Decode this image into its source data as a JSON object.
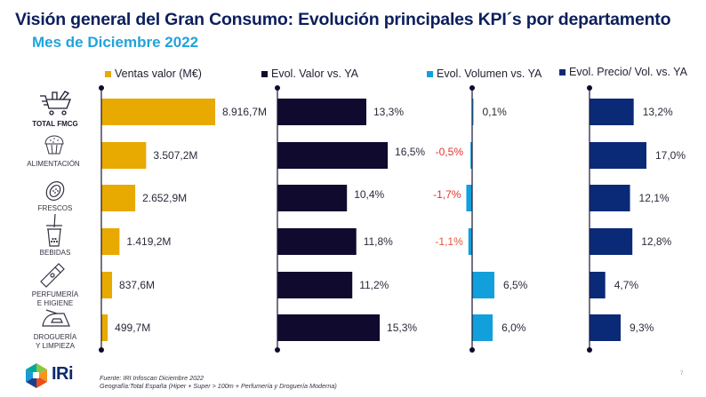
{
  "header": {
    "title": "Visión general del Gran Consumo: Evolución principales KPI´s por departamento",
    "subtitle": "Mes de Diciembre 2022"
  },
  "categories": [
    {
      "label_lines": [
        "TOTAL FMCG"
      ],
      "icon": "shopping-cart-icon",
      "bold": true
    },
    {
      "label_lines": [
        "ALIMENTACIÓN"
      ],
      "icon": "muffin-icon",
      "bold": false
    },
    {
      "label_lines": [
        "FRESCOS"
      ],
      "icon": "papaya-icon",
      "bold": false
    },
    {
      "label_lines": [
        "BEBIDAS"
      ],
      "icon": "bubble-tea-icon",
      "bold": false
    },
    {
      "label_lines": [
        "PERFUMERÍA",
        "E HIGIENE"
      ],
      "icon": "cream-tube-icon",
      "bold": false
    },
    {
      "label_lines": [
        "DROGUERÍA",
        "Y LIMPIEZA"
      ],
      "icon": "iron-icon",
      "bold": false
    }
  ],
  "chart_data": [
    {
      "type": "bar",
      "orientation": "horizontal",
      "title": "Ventas valor (M€)",
      "legend": "Ventas valor (M€)",
      "color": "#e8a900",
      "categories": [
        "TOTAL FMCG",
        "ALIMENTACIÓN",
        "FRESCOS",
        "BEBIDAS",
        "PERFUMERÍA E HIGIENE",
        "DROGUERÍA Y LIMPIEZA"
      ],
      "values": [
        8916.7,
        3507.2,
        2652.9,
        1419.2,
        837.6,
        499.7
      ],
      "labels": [
        "8.916,7M",
        "3.507,2M",
        "2.652,9M",
        "1.419,2M",
        "837,6M",
        "499,7M"
      ],
      "label_colors": [
        "#2a2a3a",
        "#2a2a3a",
        "#2a2a3a",
        "#2a2a3a",
        "#2a2a3a",
        "#2a2a3a"
      ],
      "unit": "M€"
    },
    {
      "type": "bar",
      "orientation": "horizontal",
      "title": "Evol. Valor vs. YA",
      "legend": "Evol. Valor vs. YA",
      "color": "#0f0a2e",
      "categories": [
        "TOTAL FMCG",
        "ALIMENTACIÓN",
        "FRESCOS",
        "BEBIDAS",
        "PERFUMERÍA E HIGIENE",
        "DROGUERÍA Y LIMPIEZA"
      ],
      "values": [
        13.3,
        16.5,
        10.4,
        11.8,
        11.2,
        15.3
      ],
      "labels": [
        "13,3%",
        "16,5%",
        "10,4%",
        "11,8%",
        "11,2%",
        "15,3%"
      ],
      "label_colors": [
        "#2a2a3a",
        "#2a2a3a",
        "#2a2a3a",
        "#2a2a3a",
        "#2a2a3a",
        "#2a2a3a"
      ],
      "unit": "%"
    },
    {
      "type": "bar",
      "orientation": "horizontal",
      "title": "Evol. Volumen vs. YA",
      "legend": "Evol. Volumen vs. YA",
      "color": "#11a0dc",
      "categories": [
        "TOTAL FMCG",
        "ALIMENTACIÓN",
        "FRESCOS",
        "BEBIDAS",
        "PERFUMERÍA E HIGIENE",
        "DROGUERÍA Y LIMPIEZA"
      ],
      "values": [
        0.1,
        -0.5,
        -1.7,
        -1.1,
        6.5,
        6.0
      ],
      "labels": [
        "0,1%",
        "-0,5%",
        "-1,7%",
        "-1,1%",
        "6,5%",
        "6,0%"
      ],
      "label_colors": [
        "#2a2a3a",
        "#e8322e",
        "#e8322e",
        "#e5573a",
        "#2a2a3a",
        "#2a2a3a"
      ],
      "unit": "%"
    },
    {
      "type": "bar",
      "orientation": "horizontal",
      "title": "Evol. Precio/ Vol. vs. YA",
      "legend": "Evol. Precio/ Vol. vs. YA",
      "color": "#0a2a78",
      "categories": [
        "TOTAL FMCG",
        "ALIMENTACIÓN",
        "FRESCOS",
        "BEBIDAS",
        "PERFUMERÍA E HIGIENE",
        "DROGUERÍA Y LIMPIEZA"
      ],
      "values": [
        13.2,
        17.0,
        12.1,
        12.8,
        4.7,
        9.3
      ],
      "labels": [
        "13,2%",
        "17,0%",
        "12,1%",
        "12,8%",
        "4,7%",
        "9,3%"
      ],
      "label_colors": [
        "#2a2a3a",
        "#2a2a3a",
        "#2a2a3a",
        "#2a2a3a",
        "#2a2a3a",
        "#2a2a3a"
      ],
      "unit": "%"
    }
  ],
  "footer": {
    "source": "Fuente: IRI Infoscan Diciembre 2022",
    "geography": "Geografía:Total España (Hiper + Super > 100m + Perfumería y Droguería Moderna)",
    "page_number": "7",
    "logo_text": "IRi"
  }
}
